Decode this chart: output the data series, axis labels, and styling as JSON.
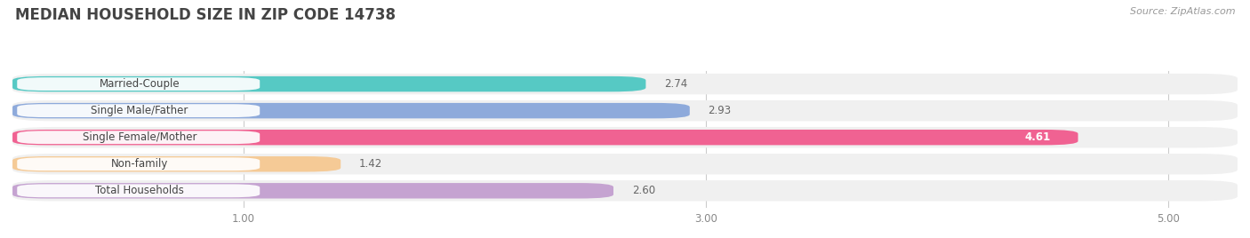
{
  "title": "MEDIAN HOUSEHOLD SIZE IN ZIP CODE 14738",
  "source": "Source: ZipAtlas.com",
  "categories": [
    "Married-Couple",
    "Single Male/Father",
    "Single Female/Mother",
    "Non-family",
    "Total Households"
  ],
  "values": [
    2.74,
    2.93,
    4.61,
    1.42,
    2.6
  ],
  "bar_colors": [
    "#56c9c4",
    "#8eaadb",
    "#f06292",
    "#f5ca96",
    "#c5a3d1"
  ],
  "background_color": "#ffffff",
  "row_bg_color": "#f0f0f0",
  "label_bg_color": "#ffffff",
  "xlim_min": 0,
  "xlim_max": 5.3,
  "xticks": [
    1.0,
    3.0,
    5.0
  ],
  "xtick_labels": [
    "1.00",
    "3.00",
    "5.00"
  ],
  "title_fontsize": 12,
  "label_fontsize": 8.5,
  "value_fontsize": 8.5,
  "source_fontsize": 8
}
